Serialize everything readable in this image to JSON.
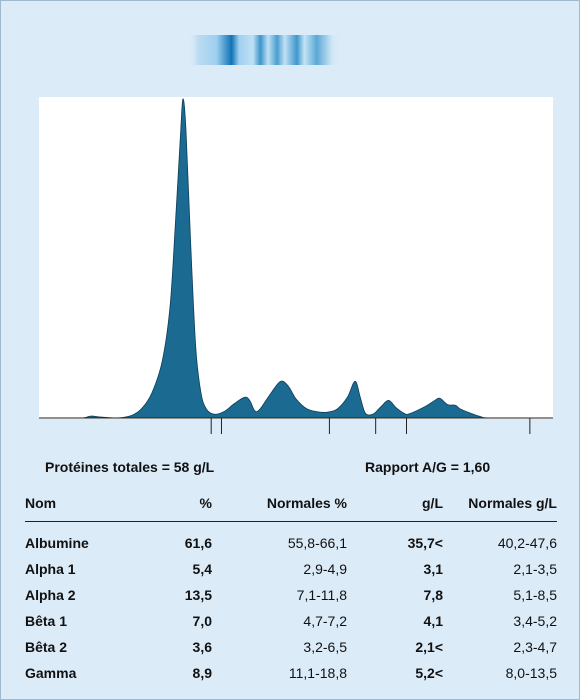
{
  "colors": {
    "peak_fill": "#1a6a92",
    "panel_bg": "#dcebf8",
    "band": "#1578b8"
  },
  "summary": {
    "total_proteins": "Protéines totales = 58 g/L",
    "ag_ratio": "Rapport A/G = 1,60"
  },
  "table": {
    "headers": {
      "name": "Nom",
      "pct": "%",
      "normal_pct": "Normales %",
      "gl": "g/L",
      "normal_gl": "Normales g/L"
    },
    "rows": [
      {
        "name": "Albumine",
        "pct": "61,6",
        "normal_pct": "55,8-66,1",
        "gl": "35,7<",
        "normal_gl": "40,2-47,6"
      },
      {
        "name": "Alpha 1",
        "pct": "5,4",
        "normal_pct": "2,9-4,9",
        "gl": "3,1",
        "normal_gl": "2,1-3,5"
      },
      {
        "name": "Alpha 2",
        "pct": "13,5",
        "normal_pct": "7,1-11,8",
        "gl": "7,8",
        "normal_gl": "5,1-8,5"
      },
      {
        "name": "Bêta 1",
        "pct": "7,0",
        "normal_pct": "4,7-7,2",
        "gl": "4,1",
        "normal_gl": "3,4-5,2"
      },
      {
        "name": "Bêta 2",
        "pct": "3,6",
        "normal_pct": "3,2-6,5",
        "gl": "2,1<",
        "normal_gl": "2,3-4,7"
      },
      {
        "name": "Gamma",
        "pct": "8,9",
        "normal_pct": "11,1-18,8",
        "gl": "5,2<",
        "normal_gl": "8,0-13,5"
      }
    ]
  },
  "chart_data": {
    "type": "area",
    "xlim": [
      0,
      100
    ],
    "ylim": [
      0,
      100
    ],
    "grid": false,
    "profile": [
      [
        0,
        0
      ],
      [
        8,
        0
      ],
      [
        10,
        0.6
      ],
      [
        12,
        0.3
      ],
      [
        15,
        0
      ],
      [
        18,
        0.8
      ],
      [
        20,
        3
      ],
      [
        22,
        8
      ],
      [
        24,
        18
      ],
      [
        25.5,
        35
      ],
      [
        26.5,
        60
      ],
      [
        27.5,
        88
      ],
      [
        28,
        100
      ],
      [
        28.6,
        90
      ],
      [
        29.5,
        55
      ],
      [
        30.5,
        22
      ],
      [
        31.5,
        8
      ],
      [
        32.5,
        3
      ],
      [
        34,
        1.2
      ],
      [
        36,
        2
      ],
      [
        38,
        4.5
      ],
      [
        40,
        6.5
      ],
      [
        41,
        5.5
      ],
      [
        42,
        2.2
      ],
      [
        43,
        2.8
      ],
      [
        45,
        7.5
      ],
      [
        47,
        11.5
      ],
      [
        48.5,
        10
      ],
      [
        50,
        6
      ],
      [
        52,
        3
      ],
      [
        54,
        2
      ],
      [
        56,
        1.8
      ],
      [
        58,
        2.8
      ],
      [
        60,
        6.5
      ],
      [
        61.5,
        11.5
      ],
      [
        62.5,
        6.5
      ],
      [
        63.5,
        1.5
      ],
      [
        65,
        1.2
      ],
      [
        66.5,
        3.5
      ],
      [
        68,
        5.5
      ],
      [
        69.5,
        3.2
      ],
      [
        71,
        1.5
      ],
      [
        72,
        1.3
      ],
      [
        75,
        3.5
      ],
      [
        77,
        5.5
      ],
      [
        78,
        6.2
      ],
      [
        79.5,
        4.2
      ],
      [
        81,
        4
      ],
      [
        82,
        2.8
      ],
      [
        84,
        1.5
      ],
      [
        86,
        0.4
      ],
      [
        88,
        0
      ],
      [
        100,
        0
      ]
    ],
    "fraction_boundaries": [
      33.5,
      56.5,
      65.5,
      71.5
    ]
  }
}
